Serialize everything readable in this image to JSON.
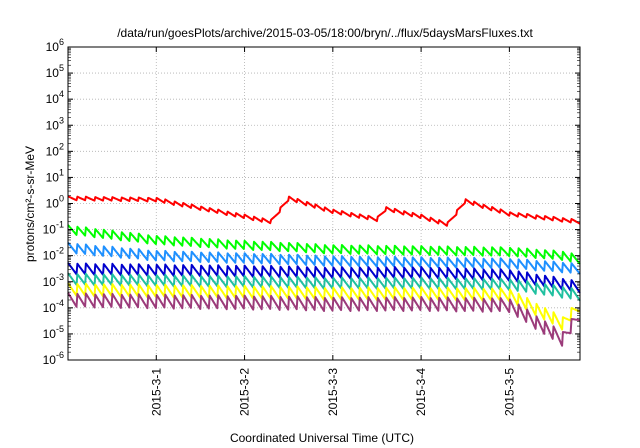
{
  "chart_data": {
    "type": "line",
    "title": "/data/run/goesPlots/archive/2015-03-05/18:00/bryn/../flux/5daysMarsFluxes.txt",
    "xlabel": "Coordinated Universal Time (UTC)",
    "ylabel": "protons/cm²-s-sr-MeV",
    "y_scale": "log",
    "ylim_exponents": [
      -6,
      6
    ],
    "y_tick_labels": [
      {
        "base": "10",
        "exp": "-6"
      },
      {
        "base": "10",
        "exp": "-5"
      },
      {
        "base": "10",
        "exp": "-4"
      },
      {
        "base": "10",
        "exp": "-3"
      },
      {
        "base": "10",
        "exp": "-2"
      },
      {
        "base": "10",
        "exp": "-1"
      },
      {
        "base": "10",
        "exp": "0"
      },
      {
        "base": "10",
        "exp": "1"
      },
      {
        "base": "10",
        "exp": "2"
      },
      {
        "base": "10",
        "exp": "3"
      },
      {
        "base": "10",
        "exp": "4"
      },
      {
        "base": "10",
        "exp": "5"
      },
      {
        "base": "10",
        "exp": "6"
      }
    ],
    "x_range_days": [
      0,
      5.8
    ],
    "x_tick_labels": [
      "2015-3-1",
      "2015-3-2",
      "2015-3-3",
      "2015-3-4",
      "2015-3-5"
    ],
    "x_tick_days": [
      1,
      2,
      3,
      4,
      5
    ],
    "grid": true,
    "sawtooth_period_days": 0.1,
    "series": [
      {
        "color": "#ff0000",
        "log10_start": 0.2,
        "sawtooth_amp": 0.15,
        "segments": [
          [
            0,
            0.2
          ],
          [
            1.0,
            0.15
          ],
          [
            2.0,
            -0.5
          ],
          [
            2.3,
            -0.7
          ],
          [
            2.5,
            0.2
          ],
          [
            3.0,
            -0.3
          ],
          [
            3.5,
            -0.6
          ],
          [
            3.6,
            -0.2
          ],
          [
            4.0,
            -0.5
          ],
          [
            4.3,
            -0.8
          ],
          [
            4.5,
            0.1
          ],
          [
            5.0,
            -0.4
          ],
          [
            5.8,
            -0.7
          ]
        ]
      },
      {
        "color": "#00ff00",
        "log10_start": -1.0,
        "sawtooth_amp": 0.35,
        "segments": [
          [
            0,
            -1.0
          ],
          [
            1.0,
            -1.4
          ],
          [
            2.0,
            -1.6
          ],
          [
            3.0,
            -1.75
          ],
          [
            4.0,
            -1.8
          ],
          [
            5.0,
            -1.85
          ],
          [
            5.6,
            -2.0
          ],
          [
            5.8,
            -2.15
          ]
        ]
      },
      {
        "color": "#1e90ff",
        "log10_start": -1.7,
        "sawtooth_amp": 0.4,
        "segments": [
          [
            0,
            -1.7
          ],
          [
            1.0,
            -2.0
          ],
          [
            2.0,
            -2.1
          ],
          [
            3.0,
            -2.2
          ],
          [
            4.0,
            -2.25
          ],
          [
            5.0,
            -2.3
          ],
          [
            5.8,
            -2.5
          ]
        ]
      },
      {
        "color": "#0000cd",
        "log10_start": -2.5,
        "sawtooth_amp": 0.45,
        "segments": [
          [
            0,
            -2.5
          ],
          [
            1.0,
            -2.55
          ],
          [
            2.0,
            -2.6
          ],
          [
            3.0,
            -2.65
          ],
          [
            4.0,
            -2.65
          ],
          [
            5.0,
            -2.75
          ],
          [
            5.8,
            -3.2
          ]
        ]
      },
      {
        "color": "#20c0a0",
        "log10_start": -2.9,
        "sawtooth_amp": 0.45,
        "segments": [
          [
            0,
            -2.9
          ],
          [
            1.0,
            -2.95
          ],
          [
            2.0,
            -3.0
          ],
          [
            3.0,
            -3.05
          ],
          [
            4.0,
            -3.05
          ],
          [
            5.0,
            -3.1
          ],
          [
            5.8,
            -3.5
          ]
        ]
      },
      {
        "color": "#ffff00",
        "log10_start": -3.3,
        "sawtooth_amp": 0.5,
        "segments": [
          [
            0,
            -3.3
          ],
          [
            1.0,
            -3.35
          ],
          [
            2.0,
            -3.4
          ],
          [
            3.0,
            -3.45
          ],
          [
            4.0,
            -3.45
          ],
          [
            5.0,
            -3.5
          ],
          [
            5.6,
            -4.6
          ],
          [
            5.8,
            -3.9
          ]
        ]
      },
      {
        "color": "#9b3b7a",
        "log10_start": -3.7,
        "sawtooth_amp": 0.55,
        "segments": [
          [
            0,
            -3.7
          ],
          [
            1.0,
            -3.75
          ],
          [
            2.0,
            -3.8
          ],
          [
            3.0,
            -3.85
          ],
          [
            4.0,
            -3.85
          ],
          [
            5.0,
            -3.9
          ],
          [
            5.6,
            -5.2
          ],
          [
            5.8,
            -4.2
          ]
        ]
      }
    ]
  }
}
